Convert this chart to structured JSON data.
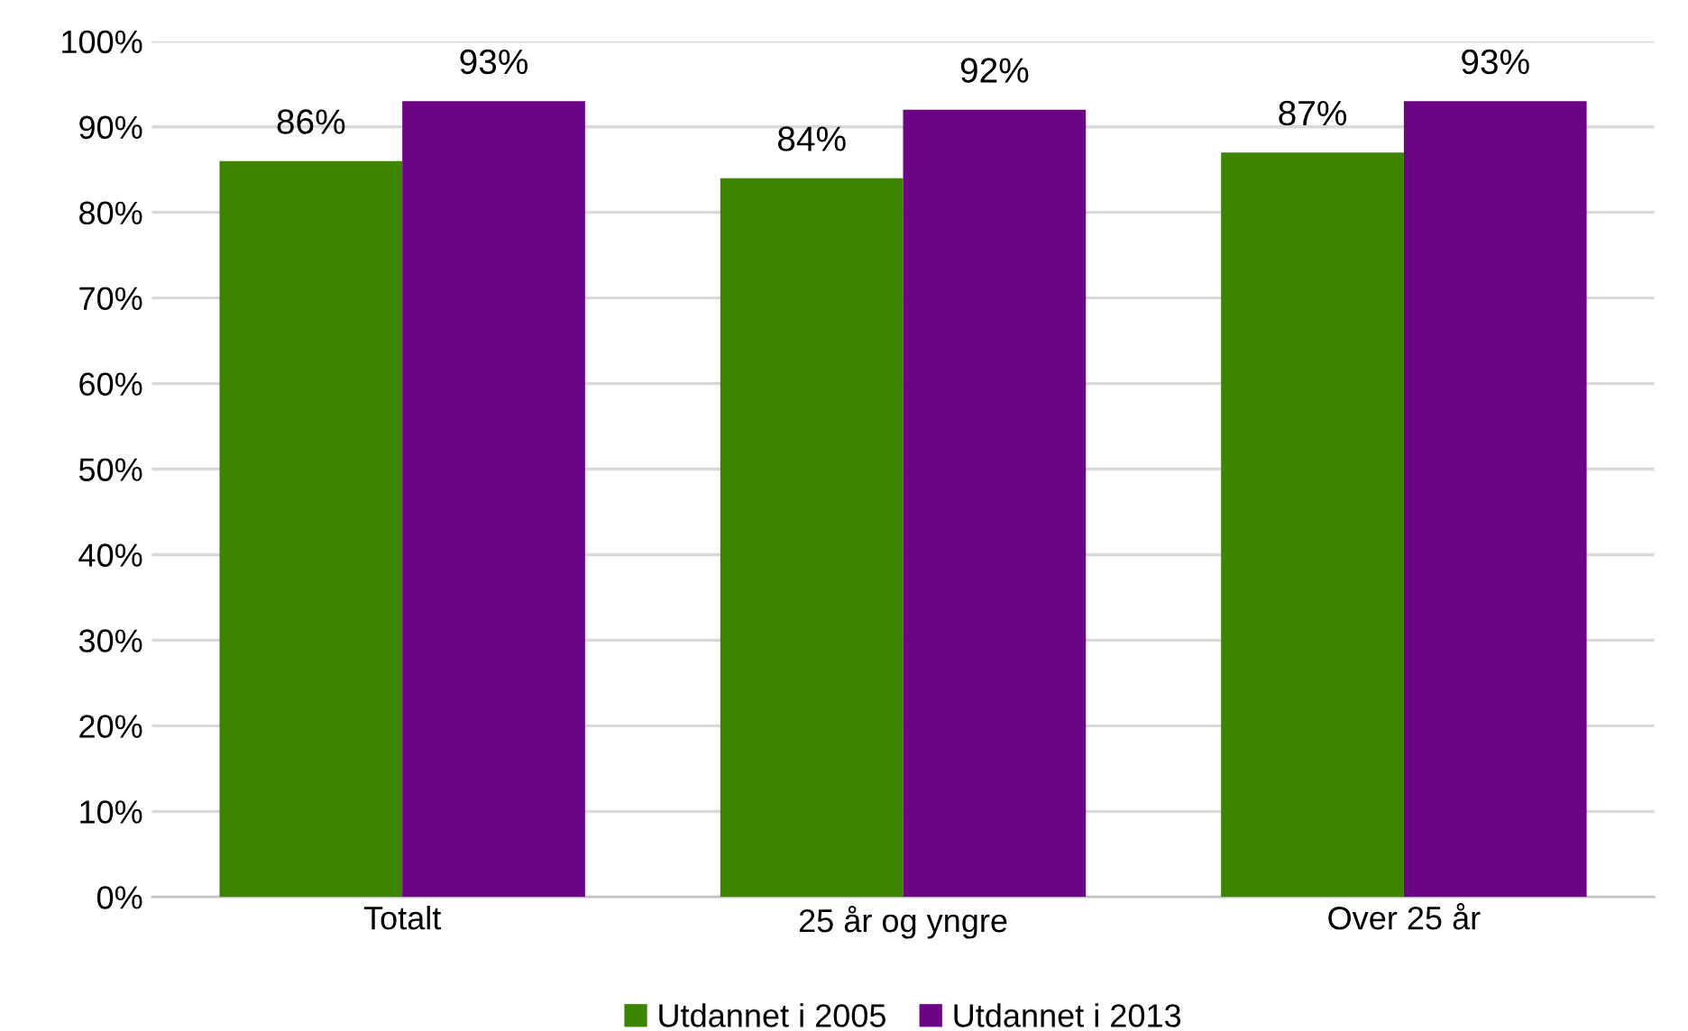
{
  "chart_data": {
    "type": "bar",
    "categories": [
      "Totalt",
      "25 år og yngre",
      "Over 25 år"
    ],
    "series": [
      {
        "name": "Utdannet i 2005",
        "color": "#3d8500",
        "values": [
          86,
          84,
          87
        ],
        "value_labels": [
          "86%",
          "84%",
          "87%"
        ]
      },
      {
        "name": "Utdannet i 2013",
        "color": "#6b0585",
        "values": [
          93,
          92,
          93
        ],
        "value_labels": [
          "93%",
          "92%",
          "93%"
        ]
      }
    ],
    "ylim": [
      0,
      100
    ],
    "yticks": [
      {
        "value": 0,
        "label": "0%"
      },
      {
        "value": 10,
        "label": "10%"
      },
      {
        "value": 20,
        "label": "20%"
      },
      {
        "value": 30,
        "label": "30%"
      },
      {
        "value": 40,
        "label": "40%"
      },
      {
        "value": 50,
        "label": "50%"
      },
      {
        "value": 60,
        "label": "60%"
      },
      {
        "value": 70,
        "label": "70%"
      },
      {
        "value": 80,
        "label": "80%"
      },
      {
        "value": 90,
        "label": "90%"
      },
      {
        "value": 100,
        "label": "100%"
      }
    ],
    "grid": "y",
    "legend": "bottom"
  }
}
